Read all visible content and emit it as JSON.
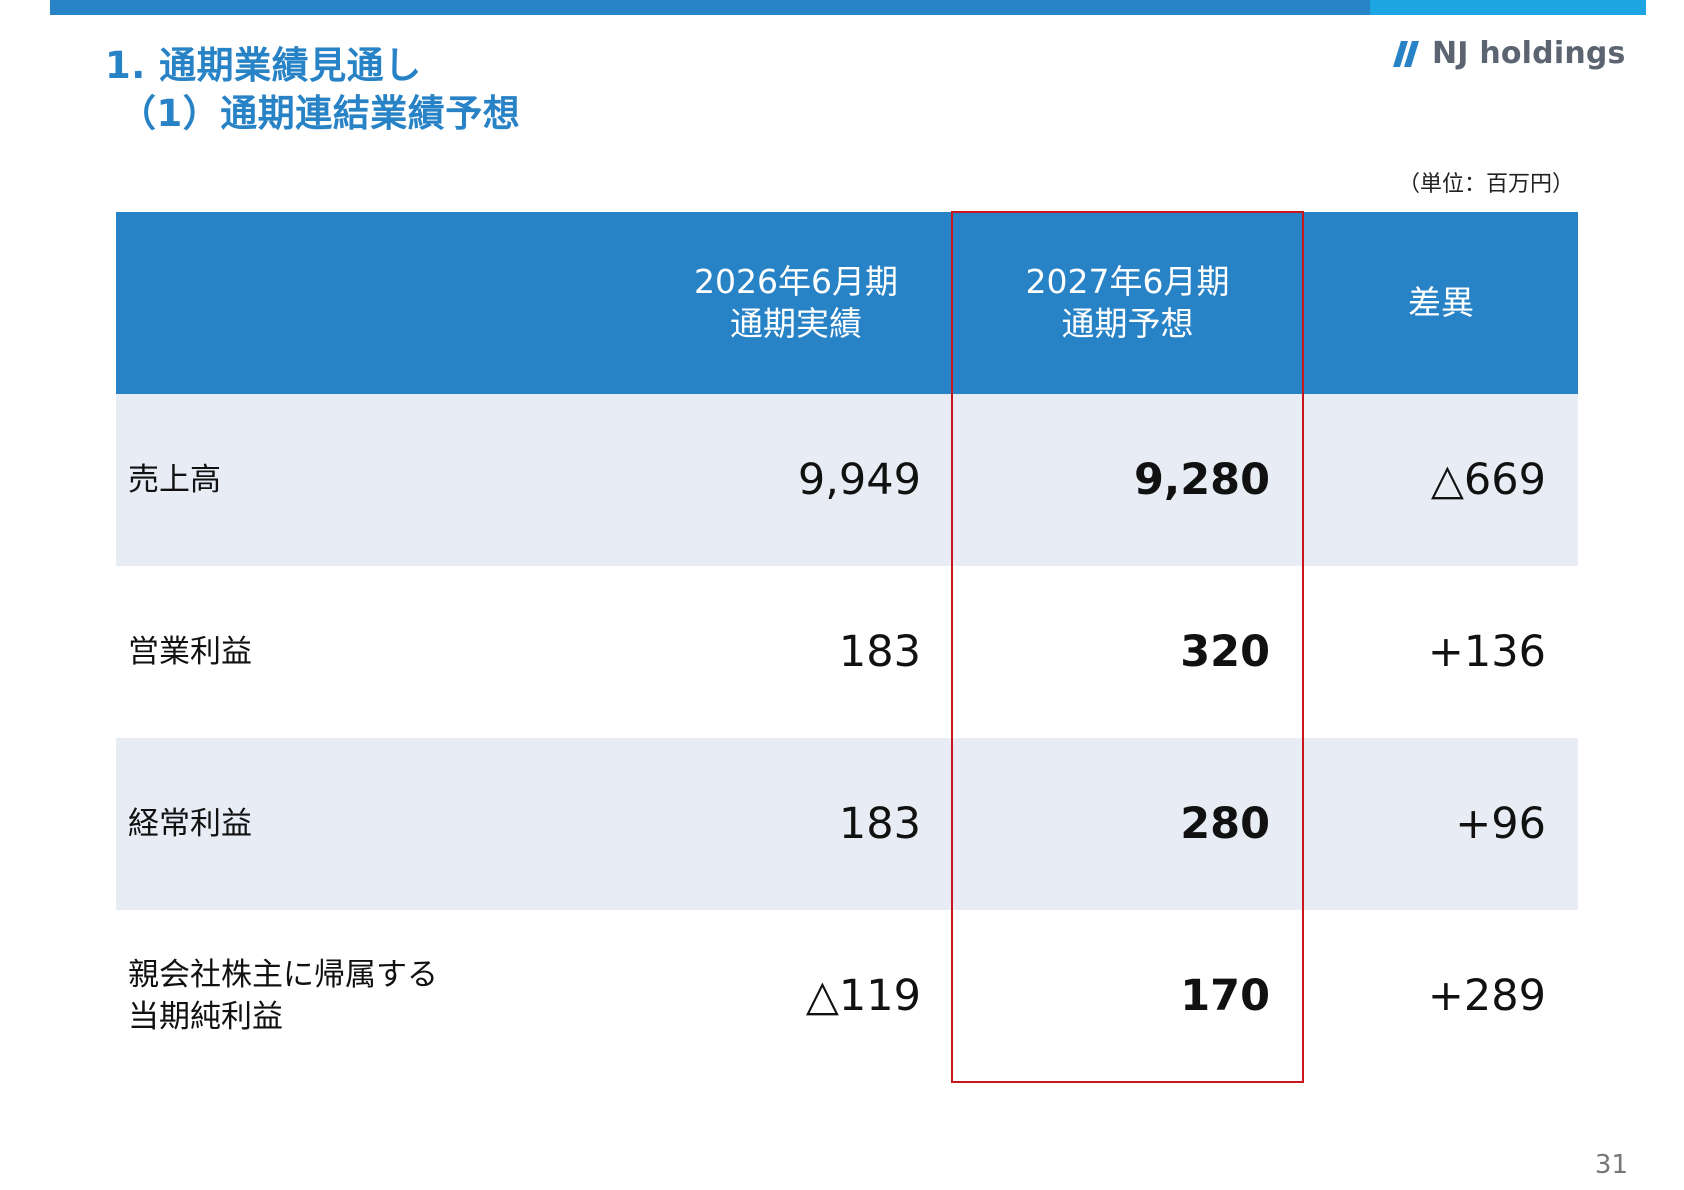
{
  "header": {
    "title_line1": "1. 通期業績見通し",
    "title_line2": "（1）通期連結業績予想",
    "logo_text": "NJ holdings"
  },
  "unit_note": "（単位：百万円）",
  "table": {
    "columns": [
      "",
      "2026年6月期\n通期実績",
      "2027年6月期\n通期予想",
      "差異"
    ],
    "rows": [
      {
        "label": "売上高",
        "fy2026": "9,949",
        "fy2027": "9,280",
        "diff": "△669"
      },
      {
        "label": "営業利益",
        "fy2026": "183",
        "fy2027": "320",
        "diff": "+136"
      },
      {
        "label": "経常利益",
        "fy2026": "183",
        "fy2027": "280",
        "diff": "+96"
      },
      {
        "label": "親会社株主に帰属する\n当期純利益",
        "fy2026": "△119",
        "fy2027": "170",
        "diff": "+289"
      }
    ]
  },
  "page_number": "31",
  "colors": {
    "brand_blue": "#2782c6",
    "accent_cyan": "#1ea6e2",
    "row_shade": "#e8edf5",
    "highlight_red": "#c8161d"
  }
}
